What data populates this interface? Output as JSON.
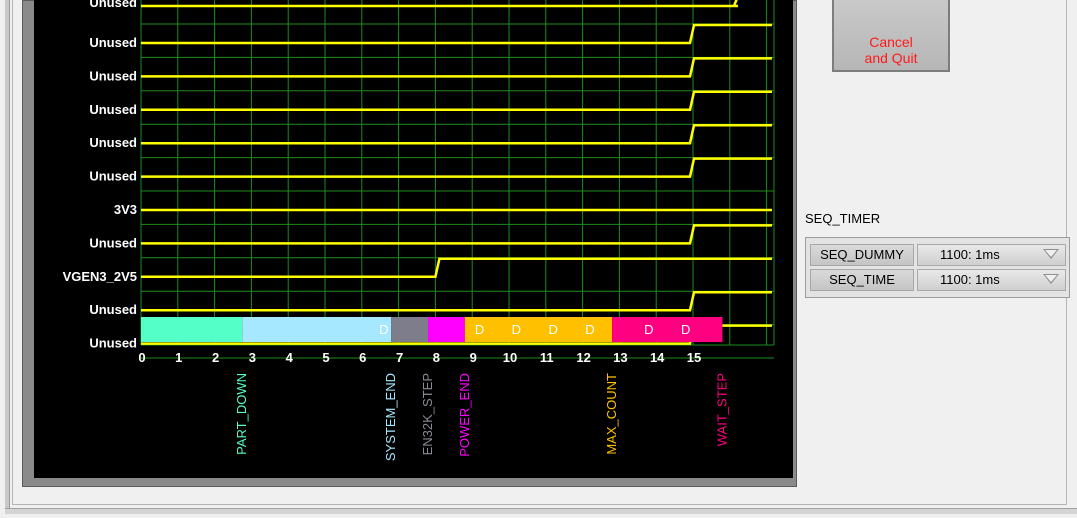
{
  "cancel_button": {
    "label": "Cancel\nand Quit"
  },
  "seq_timer": {
    "title": "SEQ_TIMER",
    "rows": [
      {
        "name": "SEQ_DUMMY",
        "value": "1100: 1ms"
      },
      {
        "name": "SEQ_TIME",
        "value": "1100: 1ms"
      }
    ]
  },
  "graph": {
    "x_ticks": [
      "0",
      "1",
      "2",
      "3",
      "4",
      "5",
      "6",
      "7",
      "8",
      "9",
      "10",
      "11",
      "12",
      "13",
      "14",
      "15"
    ],
    "channels": [
      {
        "label": "Unused",
        "rise_step": 15
      },
      {
        "label": "Unused",
        "rise_step": 15
      },
      {
        "label": "Unused",
        "rise_step": 15
      },
      {
        "label": "Unused",
        "rise_step": 15
      },
      {
        "label": "Unused",
        "rise_step": 15
      },
      {
        "label": "3V3",
        "rise_step": null
      },
      {
        "label": "Unused",
        "rise_step": 15
      },
      {
        "label": "VGEN3_2V5",
        "rise_step": 8
      },
      {
        "label": "Unused",
        "rise_step": 15
      },
      {
        "label": "Unused",
        "rise_step": 15
      }
    ],
    "phases": [
      {
        "name": "PART_DOWN",
        "start": 0,
        "end": 2.75,
        "color": "#55ffc8",
        "name_color": "#55ffc8",
        "marks": []
      },
      {
        "name": "SYSTEM_END",
        "start": 2.75,
        "end": 6.8,
        "color": "#a6e8ff",
        "name_color": "#a6e8ff",
        "marks": [
          6.6
        ]
      },
      {
        "name": "EN32K_STEP",
        "start": 6.8,
        "end": 7.8,
        "color": "#7d7d8c",
        "name_color": "#8c8c96",
        "marks": []
      },
      {
        "name": "POWER_END",
        "start": 7.8,
        "end": 8.8,
        "color": "#ff00ff",
        "name_color": "#ff00ff",
        "marks": []
      },
      {
        "name": "MAX_COUNT",
        "start": 8.8,
        "end": 12.8,
        "color": "#ffc000",
        "name_color": "#ffc000",
        "marks": [
          9.2,
          10.2,
          11.2,
          12.2
        ]
      },
      {
        "name": "WAIT_STEP",
        "start": 12.8,
        "end": 15.8,
        "color": "#ff0080",
        "name_color": "#ff0080",
        "marks": [
          13.8,
          14.8
        ]
      }
    ],
    "colors": {
      "background": "#000000",
      "grid": "#1e8c1e",
      "trace": "#ffff00",
      "label": "#ffffff"
    }
  }
}
